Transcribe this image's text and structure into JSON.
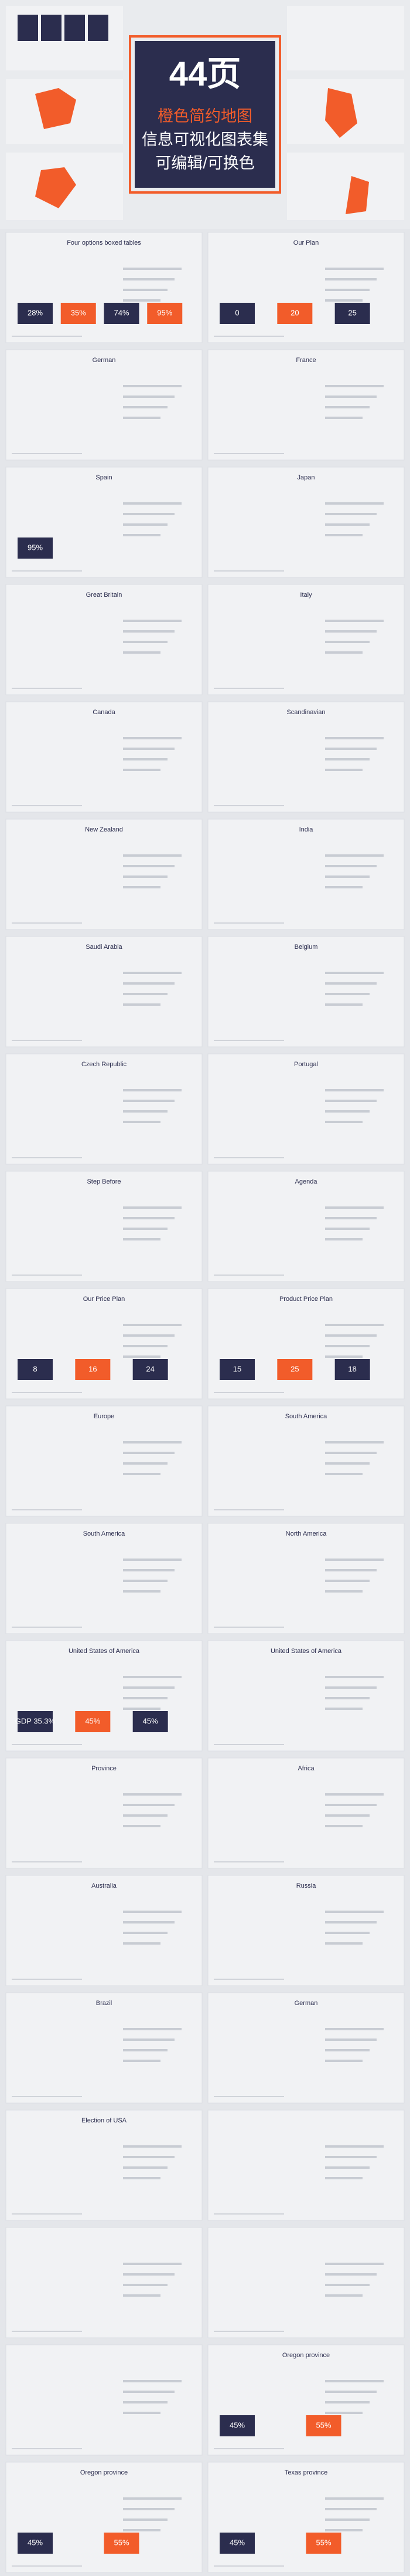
{
  "cover": {
    "count": "44页",
    "lines": [
      "橙色简约地图",
      "信息可视化图表集",
      "可编辑/可换色"
    ]
  },
  "slides": [
    {
      "title": "Four options boxed tables",
      "figures": [
        "28%",
        "35%",
        "74%",
        "95%"
      ]
    },
    {
      "title": "Our Plan",
      "figures": [
        "0",
        "20",
        "25"
      ]
    },
    {
      "title": "German"
    },
    {
      "title": "France"
    },
    {
      "title": "Spain",
      "figures": [
        "95%"
      ]
    },
    {
      "title": "Japan"
    },
    {
      "title": "Great Britain"
    },
    {
      "title": "Italy"
    },
    {
      "title": "Canada"
    },
    {
      "title": "Scandinavian"
    },
    {
      "title": "New Zealand"
    },
    {
      "title": "India"
    },
    {
      "title": "Saudi Arabia"
    },
    {
      "title": "Belgium"
    },
    {
      "title": "Czech Republic"
    },
    {
      "title": "Portugal"
    },
    {
      "title": "Step Before"
    },
    {
      "title": "Agenda"
    },
    {
      "title": "Our Price Plan",
      "figures": [
        "8",
        "16",
        "24"
      ]
    },
    {
      "title": "Product Price Plan",
      "figures": [
        "15",
        "25",
        "18"
      ]
    },
    {
      "title": "Europe"
    },
    {
      "title": "South America"
    },
    {
      "title": "South America"
    },
    {
      "title": "North America"
    },
    {
      "title": "United States of America",
      "figures": [
        "GDP 35.3%",
        "45%",
        "45%"
      ]
    },
    {
      "title": "United States of America"
    },
    {
      "title": "Province"
    },
    {
      "title": "Africa"
    },
    {
      "title": "Australia"
    },
    {
      "title": "Russia"
    },
    {
      "title": "Brazil"
    },
    {
      "title": "German"
    },
    {
      "title": "Election of USA"
    },
    {},
    {},
    {},
    {},
    {
      "title": "Oregon province",
      "figures": [
        "45%",
        "55%"
      ]
    },
    {
      "title": "Oregon province",
      "figures": [
        "45%",
        "55%"
      ]
    },
    {
      "title": "Texas province",
      "figures": [
        "45%",
        "55%"
      ]
    }
  ]
}
